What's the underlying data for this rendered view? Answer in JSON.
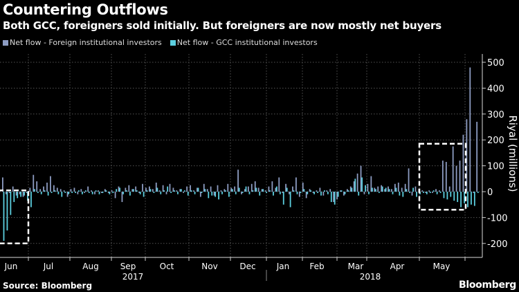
{
  "header": {
    "title": "Countering Outflows",
    "subtitle": "Both GCC, foreigners sold initially. But foreigners are now mostly net buyers"
  },
  "footer": {
    "source": "Source: Bloomberg",
    "logo": "Bloomberg"
  },
  "chart_data": {
    "type": "bar",
    "title": "Countering Outflows",
    "ylabel": "Riyal (millions)",
    "xlabel": "",
    "ylim": [
      -250,
      530
    ],
    "yticks": [
      -200,
      -100,
      0,
      100,
      200,
      300,
      400,
      500
    ],
    "grid": true,
    "legend_position": "top-left",
    "months": [
      "Jun",
      "Jul",
      "Aug",
      "Sep",
      "Oct",
      "Nov",
      "Dec",
      "Jan",
      "Feb",
      "Mar",
      "Apr",
      "May"
    ],
    "years": [
      "2017",
      "2018"
    ],
    "colors": {
      "foreign": "#8d9cc2",
      "gcc": "#5ccfdf"
    },
    "annotations": [
      {
        "type": "dashed-box",
        "period": "early Jun 2017",
        "y_range": [
          -200,
          5
        ]
      },
      {
        "type": "dashed-box",
        "period": "May 2018",
        "y_range": [
          -70,
          185
        ]
      }
    ],
    "series": [
      {
        "name": "Net flow - Foreign institutional investors",
        "values": [
          55,
          -10,
          -5,
          20,
          -15,
          -10,
          -20,
          -5,
          15,
          65,
          40,
          10,
          20,
          35,
          60,
          25,
          15,
          10,
          5,
          -20,
          10,
          15,
          -10,
          10,
          -5,
          20,
          5,
          -10,
          5,
          -5,
          10,
          -5,
          5,
          -25,
          20,
          -40,
          15,
          25,
          10,
          20,
          -5,
          30,
          15,
          20,
          10,
          35,
          5,
          25,
          -10,
          30,
          15,
          5,
          10,
          -5,
          20,
          25,
          5,
          15,
          -20,
          30,
          10,
          20,
          -15,
          25,
          5,
          10,
          30,
          15,
          20,
          85,
          -10,
          10,
          20,
          30,
          40,
          15,
          10,
          5,
          20,
          40,
          15,
          55,
          -5,
          30,
          -10,
          20,
          55,
          -20,
          35,
          -25,
          10,
          -5,
          5,
          15,
          -15,
          5,
          10,
          -40,
          -30,
          5,
          -15,
          10,
          20,
          40,
          70,
          100,
          -10,
          30,
          60,
          15,
          20,
          25,
          10,
          20,
          10,
          30,
          35,
          15,
          30,
          90,
          -15,
          20,
          10,
          5,
          -5,
          5,
          -5,
          10,
          5,
          120,
          115,
          20,
          175,
          100,
          120,
          220,
          280,
          480,
          -5,
          270
        ]
      },
      {
        "name": "Net flow - GCC institutional investors",
        "values": [
          -190,
          -150,
          -90,
          -40,
          -25,
          -20,
          -15,
          -35,
          -60,
          10,
          -5,
          -10,
          5,
          -15,
          -5,
          5,
          -10,
          -20,
          -5,
          -10,
          -5,
          -5,
          5,
          -10,
          5,
          -5,
          -10,
          5,
          -10,
          -5,
          5,
          -10,
          -5,
          10,
          15,
          -10,
          5,
          -15,
          10,
          5,
          -10,
          -20,
          5,
          10,
          -5,
          15,
          -10,
          5,
          20,
          -5,
          5,
          -10,
          10,
          5,
          -15,
          5,
          -10,
          15,
          -5,
          10,
          -25,
          -15,
          -20,
          -30,
          -10,
          5,
          -20,
          10,
          -10,
          15,
          -5,
          20,
          -10,
          5,
          15,
          -15,
          10,
          -5,
          5,
          -15,
          20,
          -10,
          -50,
          15,
          -60,
          5,
          -10,
          -5,
          10,
          -10,
          5,
          -10,
          -5,
          -15,
          5,
          -10,
          -40,
          -50,
          -20,
          5,
          -10,
          5,
          15,
          50,
          -15,
          55,
          25,
          -10,
          15,
          10,
          -5,
          20,
          15,
          10,
          -10,
          15,
          -15,
          -20,
          10,
          -5,
          15,
          -20,
          -10,
          -5,
          -10,
          -5,
          5,
          -10,
          -5,
          -25,
          -30,
          -20,
          -35,
          -40,
          -60,
          -45,
          -60,
          -50,
          -55,
          -5
        ]
      }
    ]
  }
}
